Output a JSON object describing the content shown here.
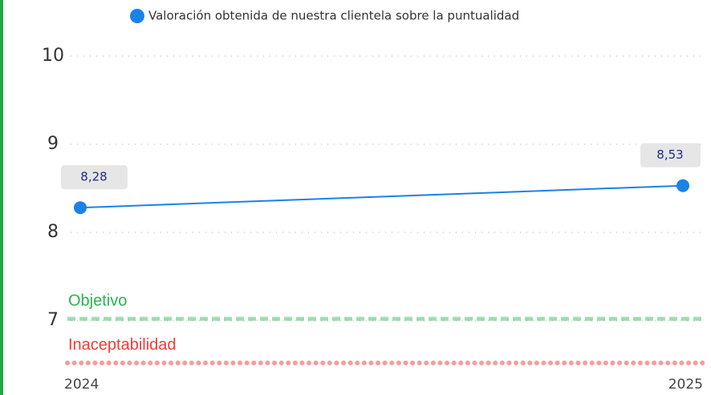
{
  "chart_data": {
    "type": "line",
    "categories": [
      "2024",
      "2025"
    ],
    "series": [
      {
        "name": "Valoración obtenida de nuestra clientela sobre la puntualidad",
        "color": "#1a82e8",
        "values": [
          8.28,
          8.53
        ],
        "value_labels": [
          "8,28",
          "8,53"
        ]
      }
    ],
    "ylim": [
      6.5,
      10
    ],
    "yticks": [
      7,
      8,
      9,
      10
    ],
    "grid": true,
    "reference_lines": [
      {
        "label": "Objetivo",
        "value": 7,
        "color": "#2bb24c"
      },
      {
        "label": "Inaceptabilidad",
        "value": 6.5,
        "color": "#f23a3a"
      }
    ]
  }
}
